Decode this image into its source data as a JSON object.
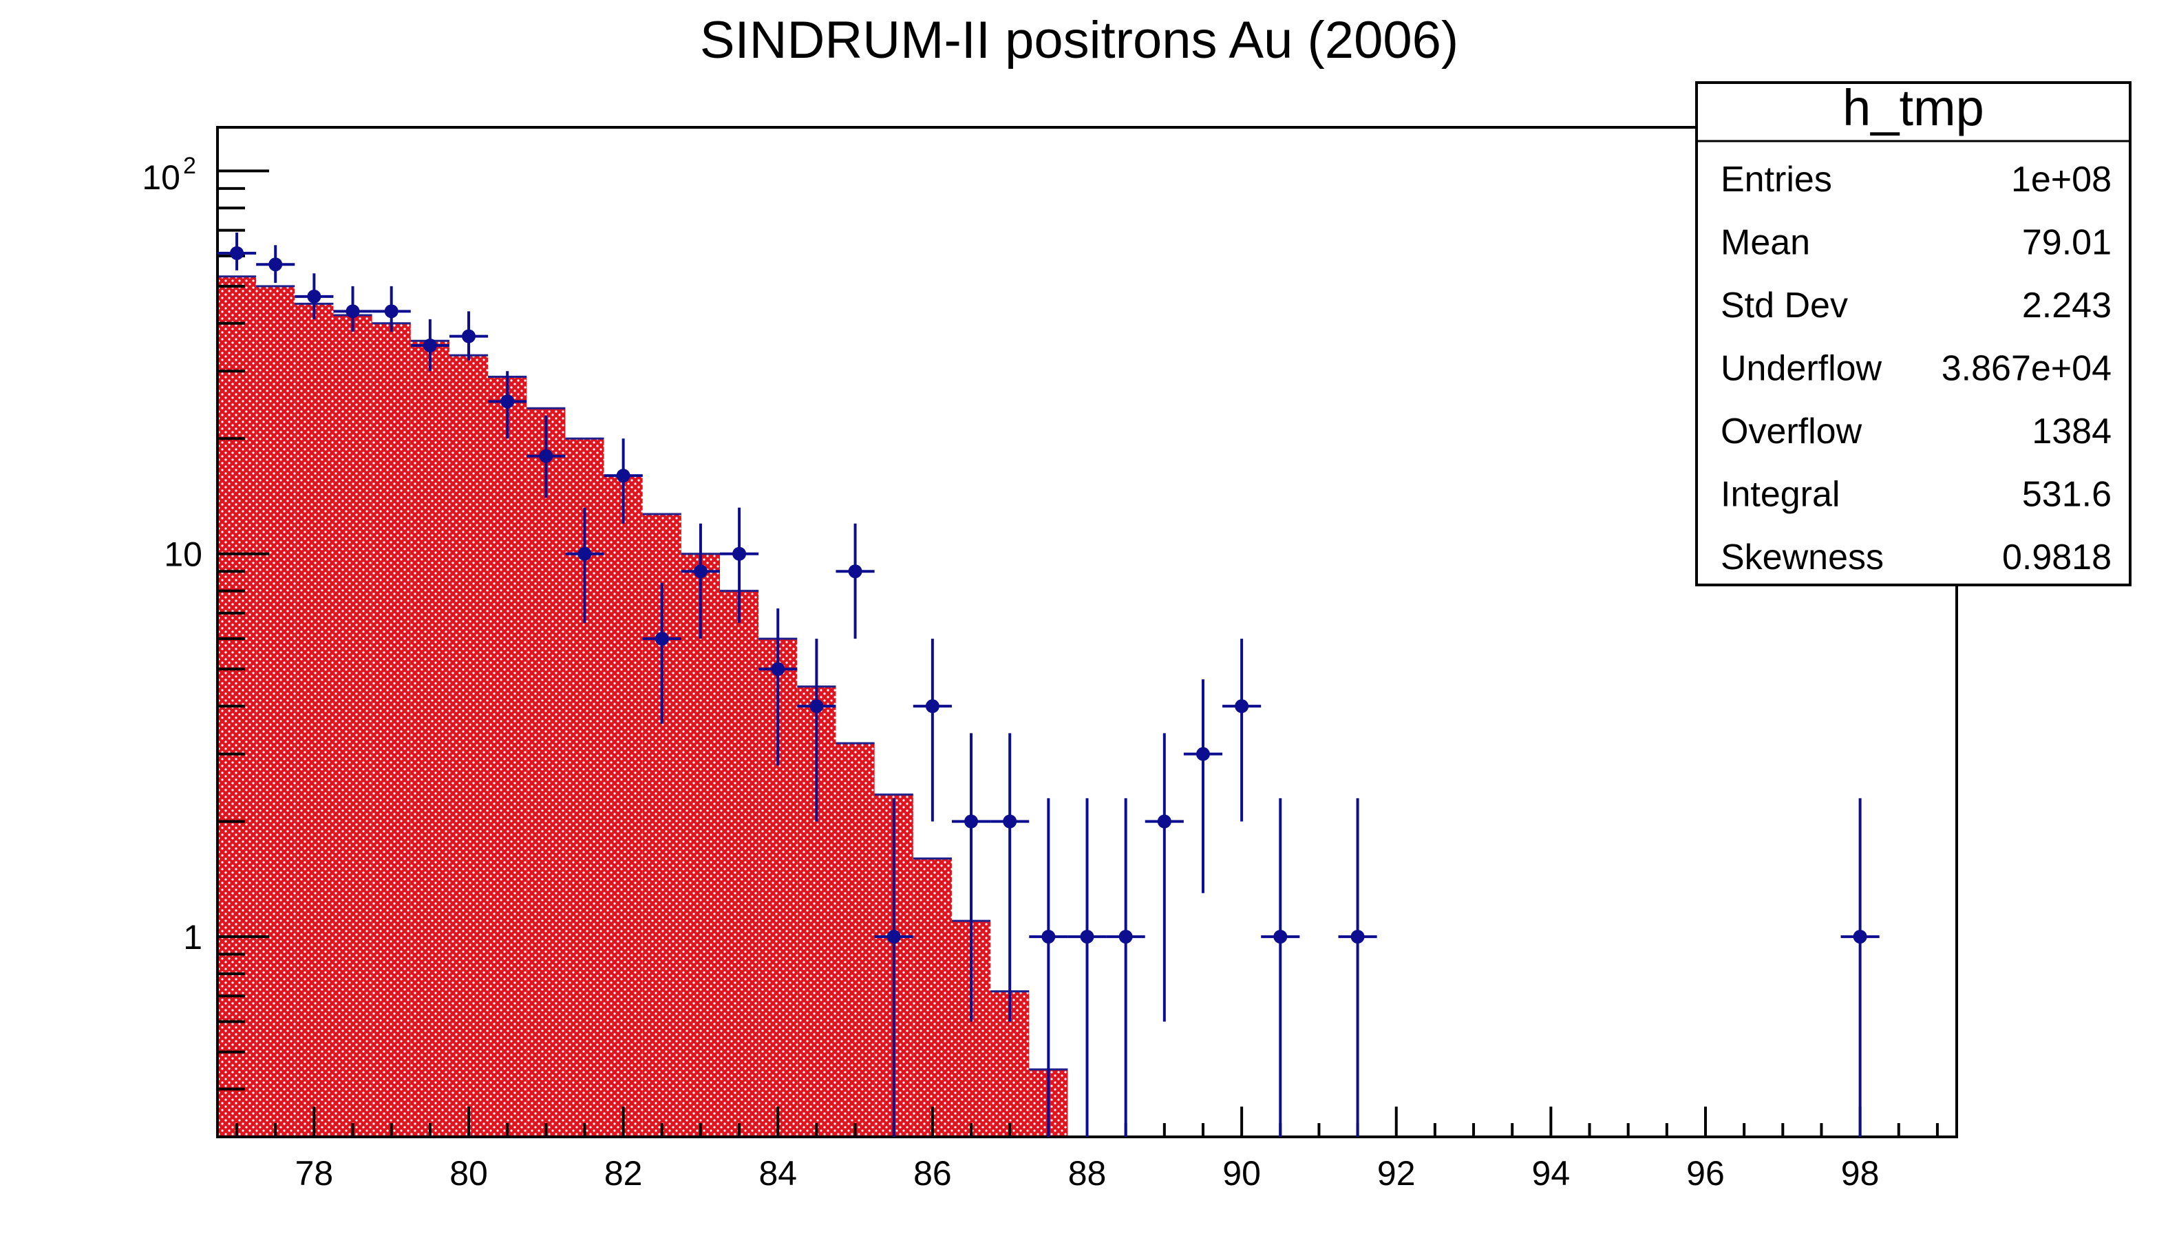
{
  "colors": {
    "fill": "#e0141e",
    "fill_dot": "#ffffff",
    "outline": "#20208a",
    "points": "#0d0d8f",
    "axis": "#000000"
  },
  "chart_data": {
    "type": "bar",
    "title": "SINDRUM-II positrons Au (2006)",
    "xlabel": "",
    "ylabel": "",
    "xlim": [
      76.75,
      99.25
    ],
    "ylim": [
      0.3,
      130
    ],
    "log_y": true,
    "x_ticks": [
      "78",
      "80",
      "82",
      "84",
      "86",
      "88",
      "90",
      "92",
      "94",
      "96",
      "98"
    ],
    "y_ticks": [
      "1",
      "10"
    ],
    "y_top_tick_base": "10",
    "y_top_tick_exp": "2",
    "bin_width": 0.5,
    "series": [
      {
        "kind": "histogram-fill",
        "bin_low": [
          76.75,
          77.25,
          77.75,
          78.25,
          78.75,
          79.25,
          79.75,
          80.25,
          80.75,
          81.25,
          81.75,
          82.25,
          82.75,
          83.25,
          83.75,
          84.25,
          84.75,
          85.25,
          85.75,
          86.25,
          86.75,
          87.25
        ],
        "values": [
          53,
          50,
          45,
          42,
          40,
          36,
          33,
          29,
          24,
          20,
          16,
          12.7,
          10,
          8,
          6,
          4.5,
          3.2,
          2.35,
          1.6,
          1.1,
          0.72,
          0.45
        ]
      },
      {
        "kind": "data-points",
        "x": [
          77,
          77.5,
          78,
          78.5,
          79,
          79.5,
          80,
          80.5,
          81,
          81.5,
          82,
          82.5,
          83,
          83.5,
          84,
          84.5,
          85,
          85.5,
          86,
          86.5,
          87,
          87.5,
          88,
          88.5,
          89,
          89.5,
          90,
          90.5,
          91.5,
          98
        ],
        "y": [
          61,
          57,
          47,
          43,
          43,
          35,
          37,
          25,
          18,
          10,
          16,
          6,
          9,
          10,
          5,
          4,
          9,
          1,
          4,
          2,
          2,
          1,
          1,
          1,
          2,
          3,
          4,
          1,
          1,
          1
        ],
        "err_lo": [
          55,
          51,
          41,
          38,
          38,
          30,
          32,
          20,
          14,
          6.6,
          12,
          3.6,
          6,
          6.6,
          2.8,
          2,
          6,
          0.3,
          2,
          0.6,
          0.6,
          0.3,
          0.3,
          0.3,
          0.6,
          1.3,
          2,
          0.3,
          0.3,
          0.3
        ],
        "err_hi": [
          69,
          64,
          54,
          50,
          50,
          41,
          43,
          30,
          23,
          13.2,
          20,
          8.4,
          12,
          13.2,
          7.2,
          6,
          12,
          2.3,
          6,
          3.4,
          3.4,
          2.3,
          2.3,
          2.3,
          3.4,
          4.7,
          6,
          2.3,
          2.3,
          2.3
        ]
      }
    ]
  },
  "stats": {
    "title": "h_tmp",
    "rows": [
      {
        "label": "Entries",
        "value": "1e+08"
      },
      {
        "label": "Mean",
        "value": "79.01"
      },
      {
        "label": "Std Dev",
        "value": "2.243"
      },
      {
        "label": "Underflow",
        "value": "3.867e+04"
      },
      {
        "label": "Overflow",
        "value": "1384"
      },
      {
        "label": "Integral",
        "value": "531.6"
      },
      {
        "label": "Skewness",
        "value": "0.9818"
      }
    ]
  }
}
